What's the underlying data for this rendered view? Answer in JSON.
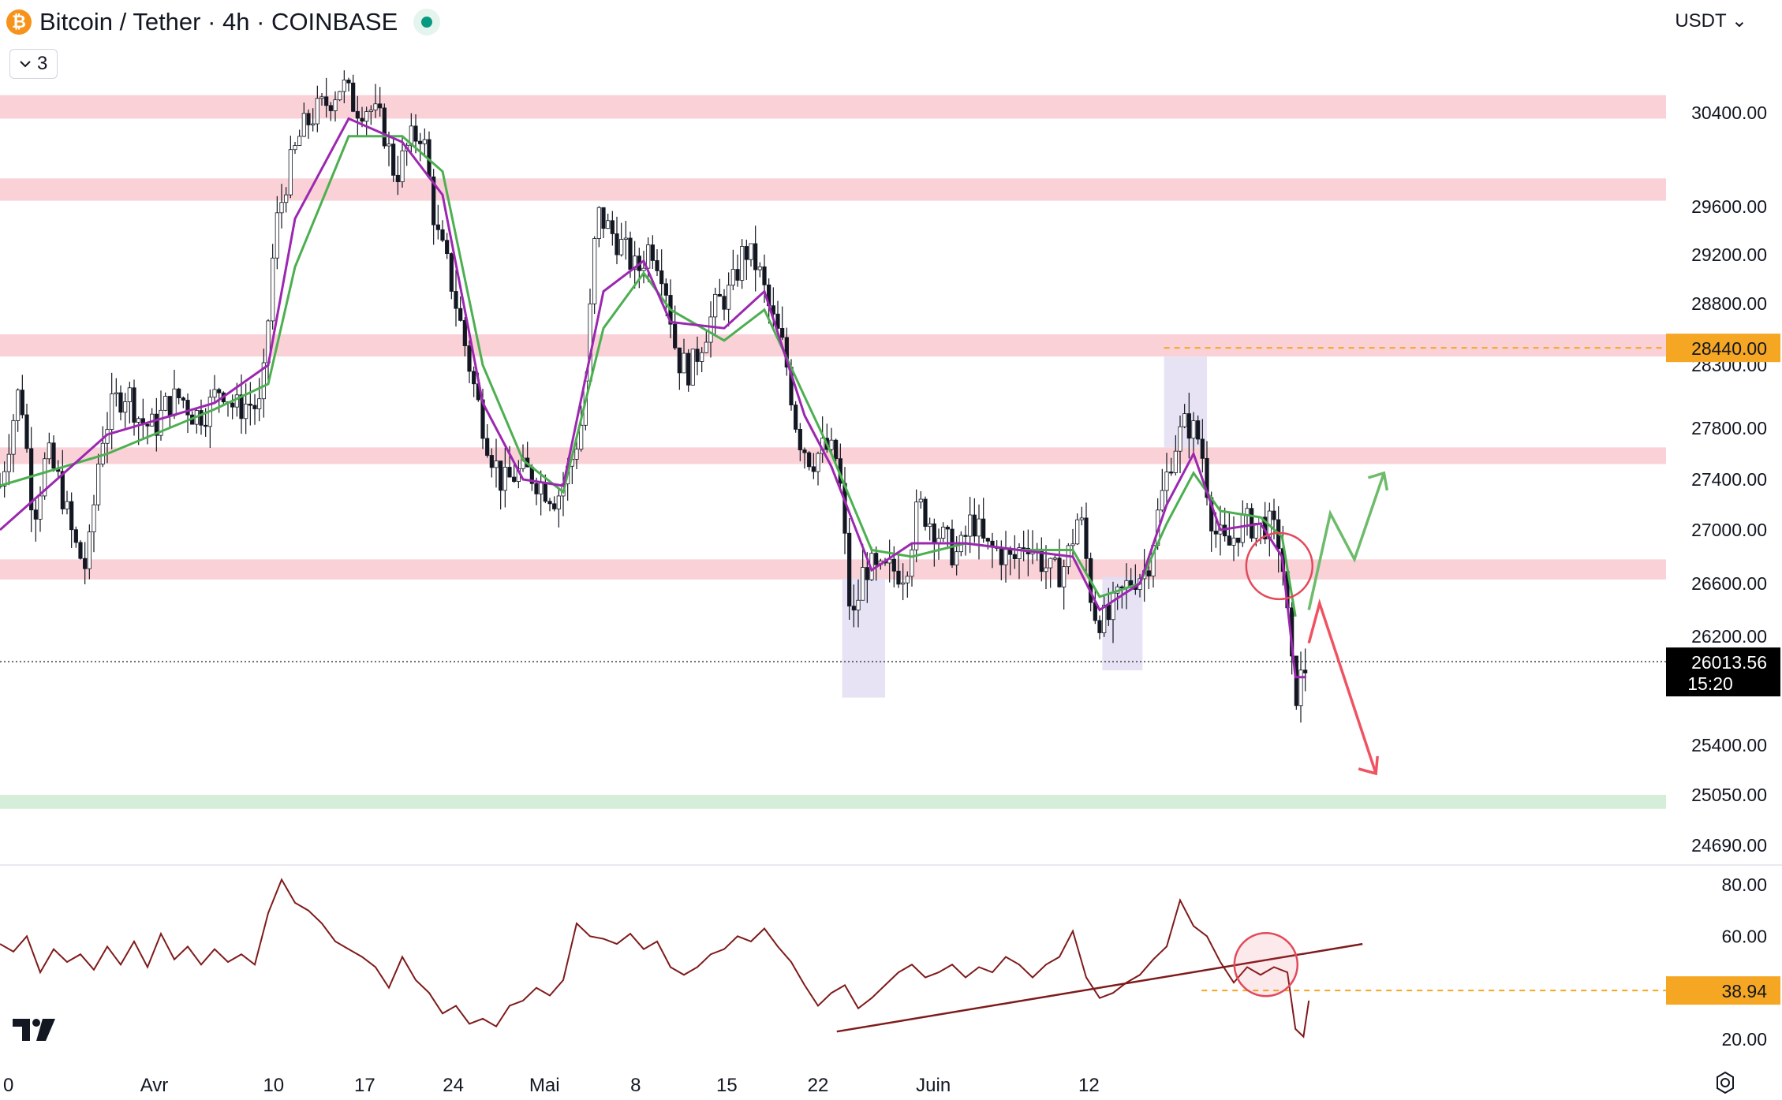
{
  "header": {
    "coin_symbol": "₿",
    "title": "Bitcoin / Tether · 4h · COINBASE",
    "indicators_count": "3",
    "currency": "USDT"
  },
  "colors": {
    "zone_resistance": "#f8c9d0",
    "zone_support": "#cdebd2",
    "highlight_box": "#e3def3",
    "ema_fast": "#9c27b0",
    "ema_slow": "#4caf50",
    "candle": "#131722",
    "rsi": "#7f1a1a",
    "price_label_bg": "#f5a623",
    "last_label_bg": "#000000",
    "projection_up": "#6dbb6b",
    "projection_down": "#ef5361",
    "circle": "#e24a5a"
  },
  "chart_data": [
    {
      "type": "candlestick",
      "title": "Bitcoin / Tether · 4h · COINBASE",
      "y_axis_ticks": [
        30400,
        29600,
        29200,
        28800,
        28300,
        27800,
        27400,
        27000,
        26600,
        26200,
        25400,
        25050,
        24690
      ],
      "y_axis_tick_labels": [
        "30400.00",
        "29600.00",
        "29200.00",
        "28800.00",
        "28300.00",
        "27800.00",
        "27400.00",
        "27000.00",
        "26600.00",
        "26200.00",
        "25400.00",
        "25050.00",
        "24690.00"
      ],
      "x_axis_labels": [
        "0",
        "Avr",
        "10",
        "17",
        "24",
        "Mai",
        "8",
        "15",
        "22",
        "Juin",
        "12"
      ],
      "price_series": {
        "name": "BTCUSDT close (approx.)",
        "points": [
          [
            0.0,
            27350
          ],
          [
            0.75,
            28150
          ],
          [
            1.25,
            27100
          ],
          [
            1.75,
            27600
          ],
          [
            2.25,
            27350
          ],
          [
            2.75,
            26900
          ],
          [
            3.25,
            26700
          ],
          [
            3.75,
            27700
          ],
          [
            4.25,
            28000
          ],
          [
            4.75,
            28100
          ],
          [
            5.25,
            27850
          ],
          [
            5.75,
            27800
          ],
          [
            6.25,
            28000
          ],
          [
            6.75,
            28050
          ],
          [
            7.25,
            27900
          ],
          [
            7.75,
            27950
          ],
          [
            8.25,
            28150
          ],
          [
            8.75,
            27950
          ],
          [
            9.25,
            28000
          ],
          [
            9.75,
            27950
          ],
          [
            10.25,
            29400
          ],
          [
            10.75,
            29900
          ],
          [
            11.25,
            30250
          ],
          [
            11.75,
            30400
          ],
          [
            12.25,
            30500
          ],
          [
            12.75,
            30650
          ],
          [
            13.25,
            30450
          ],
          [
            13.75,
            30450
          ],
          [
            14.25,
            30300
          ],
          [
            14.75,
            29850
          ],
          [
            15.25,
            30150
          ],
          [
            15.75,
            30250
          ],
          [
            16.25,
            29400
          ],
          [
            16.75,
            29050
          ],
          [
            17.25,
            28550
          ],
          [
            17.75,
            28050
          ],
          [
            18.25,
            27650
          ],
          [
            18.75,
            27350
          ],
          [
            19.25,
            27450
          ],
          [
            19.75,
            27450
          ],
          [
            20.25,
            27350
          ],
          [
            20.75,
            27250
          ],
          [
            21.25,
            27500
          ],
          [
            21.75,
            27900
          ],
          [
            22.25,
            29550
          ],
          [
            22.75,
            29400
          ],
          [
            23.25,
            29250
          ],
          [
            23.75,
            29050
          ],
          [
            24.25,
            29300
          ],
          [
            24.75,
            29050
          ],
          [
            25.25,
            28350
          ],
          [
            25.75,
            28250
          ],
          [
            26.25,
            28550
          ],
          [
            26.75,
            28800
          ],
          [
            27.25,
            28900
          ],
          [
            27.75,
            29250
          ],
          [
            28.25,
            29100
          ],
          [
            28.75,
            28700
          ],
          [
            29.25,
            28400
          ],
          [
            29.75,
            27750
          ],
          [
            30.25,
            27550
          ],
          [
            30.75,
            27650
          ],
          [
            31.25,
            27550
          ],
          [
            31.75,
            26250
          ],
          [
            32.25,
            26750
          ],
          [
            32.75,
            26650
          ],
          [
            33.25,
            26700
          ],
          [
            33.75,
            26700
          ],
          [
            34.25,
            27200
          ],
          [
            34.75,
            27050
          ],
          [
            35.25,
            26900
          ],
          [
            35.75,
            26800
          ],
          [
            36.25,
            27100
          ],
          [
            36.75,
            26850
          ],
          [
            37.25,
            26850
          ],
          [
            37.75,
            26750
          ],
          [
            38.25,
            26950
          ],
          [
            38.75,
            26800
          ],
          [
            39.25,
            26650
          ],
          [
            39.75,
            26750
          ],
          [
            40.25,
            27150
          ],
          [
            40.75,
            26400
          ],
          [
            41.25,
            26300
          ],
          [
            41.75,
            26500
          ],
          [
            42.25,
            26650
          ],
          [
            42.75,
            26700
          ],
          [
            43.25,
            27200
          ],
          [
            43.75,
            27650
          ],
          [
            44.25,
            27850
          ],
          [
            44.75,
            27700
          ],
          [
            45.25,
            27000
          ],
          [
            45.75,
            26850
          ],
          [
            46.25,
            27050
          ],
          [
            46.75,
            27050
          ],
          [
            47.25,
            27050
          ],
          [
            47.75,
            26900
          ],
          [
            48.25,
            25750
          ],
          [
            48.75,
            26013.56
          ]
        ]
      },
      "ema_fast_points": [
        [
          0,
          27000
        ],
        [
          4,
          27750
        ],
        [
          8,
          28000
        ],
        [
          10,
          28300
        ],
        [
          11,
          29500
        ],
        [
          13,
          30350
        ],
        [
          15,
          30150
        ],
        [
          16.5,
          29700
        ],
        [
          18,
          28000
        ],
        [
          19.5,
          27400
        ],
        [
          21,
          27350
        ],
        [
          22.5,
          28900
        ],
        [
          24,
          29150
        ],
        [
          25,
          28650
        ],
        [
          27,
          28600
        ],
        [
          28.5,
          28900
        ],
        [
          30,
          27900
        ],
        [
          31,
          27500
        ],
        [
          32.5,
          26700
        ],
        [
          34,
          26900
        ],
        [
          36,
          26900
        ],
        [
          38,
          26850
        ],
        [
          40,
          26800
        ],
        [
          41,
          26400
        ],
        [
          42.5,
          26600
        ],
        [
          43.5,
          27200
        ],
        [
          44.5,
          27600
        ],
        [
          45.5,
          27000
        ],
        [
          47,
          27050
        ],
        [
          47.8,
          26800
        ],
        [
          48.3,
          25900
        ],
        [
          48.7,
          25900
        ]
      ],
      "ema_slow_points": [
        [
          0,
          27350
        ],
        [
          4,
          27600
        ],
        [
          8,
          27950
        ],
        [
          10,
          28150
        ],
        [
          11,
          29100
        ],
        [
          13,
          30200
        ],
        [
          15,
          30200
        ],
        [
          16.5,
          29900
        ],
        [
          18,
          28300
        ],
        [
          19.5,
          27550
        ],
        [
          21,
          27300
        ],
        [
          22.5,
          28600
        ],
        [
          24,
          29050
        ],
        [
          25,
          28750
        ],
        [
          27,
          28500
        ],
        [
          28.5,
          28750
        ],
        [
          30,
          28050
        ],
        [
          31,
          27600
        ],
        [
          32.5,
          26850
        ],
        [
          34,
          26800
        ],
        [
          36,
          26900
        ],
        [
          38,
          26850
        ],
        [
          40,
          26850
        ],
        [
          41,
          26500
        ],
        [
          42.5,
          26600
        ],
        [
          43.5,
          27050
        ],
        [
          44.5,
          27450
        ],
        [
          45.5,
          27150
        ],
        [
          47,
          27100
        ],
        [
          47.8,
          26950
        ],
        [
          48.3,
          26350
        ]
      ],
      "resistance_zones": [
        [
          30350,
          30550
        ],
        [
          29650,
          29840
        ],
        [
          28370,
          28550
        ],
        [
          27520,
          27650
        ],
        [
          26630,
          26780
        ]
      ],
      "support_zones": [
        [
          24950,
          25050
        ]
      ],
      "highlight_boxes": [
        [
          31.4,
          33.0,
          25750,
          26640
        ],
        [
          41.1,
          42.6,
          25950,
          26650
        ],
        [
          43.4,
          45.0,
          27650,
          28370
        ]
      ],
      "price_labels": [
        {
          "value": 28440,
          "text": "28440.00"
        },
        {
          "value": 26013.56,
          "text": "26013.56",
          "sub": "15:20"
        }
      ],
      "projection_up": [
        [
          48.8,
          26400
        ],
        [
          49.6,
          27130
        ],
        [
          50.5,
          26780
        ],
        [
          51.6,
          27450
        ]
      ],
      "projection_down": [
        [
          48.8,
          26150
        ],
        [
          49.2,
          26450
        ],
        [
          51.3,
          25200
        ]
      ]
    },
    {
      "type": "line",
      "name": "RSI",
      "y_axis_ticks": [
        80,
        60,
        20
      ],
      "y_axis_tick_labels": [
        "80.00",
        "60.00",
        "20.00"
      ],
      "points": [
        [
          0.0,
          57
        ],
        [
          0.5,
          54
        ],
        [
          1.0,
          60
        ],
        [
          1.5,
          46
        ],
        [
          2.0,
          55
        ],
        [
          2.5,
          50
        ],
        [
          3.0,
          53
        ],
        [
          3.5,
          47
        ],
        [
          4.0,
          56
        ],
        [
          4.5,
          49
        ],
        [
          5.0,
          58
        ],
        [
          5.5,
          48
        ],
        [
          6.0,
          61
        ],
        [
          6.5,
          51
        ],
        [
          7.0,
          56
        ],
        [
          7.5,
          49
        ],
        [
          8.0,
          55
        ],
        [
          8.5,
          50
        ],
        [
          9.0,
          53
        ],
        [
          9.5,
          49
        ],
        [
          10.0,
          69
        ],
        [
          10.5,
          82
        ],
        [
          11.0,
          73
        ],
        [
          11.5,
          70
        ],
        [
          12.0,
          65
        ],
        [
          12.5,
          58
        ],
        [
          13.0,
          55
        ],
        [
          13.5,
          52
        ],
        [
          14.0,
          48
        ],
        [
          14.5,
          40
        ],
        [
          15.0,
          52
        ],
        [
          15.5,
          43
        ],
        [
          16.0,
          38
        ],
        [
          16.5,
          30
        ],
        [
          17.0,
          33
        ],
        [
          17.5,
          26
        ],
        [
          18.0,
          28
        ],
        [
          18.5,
          25
        ],
        [
          19.0,
          33
        ],
        [
          19.5,
          35
        ],
        [
          20.0,
          40
        ],
        [
          20.5,
          37
        ],
        [
          21.0,
          43
        ],
        [
          21.5,
          65
        ],
        [
          22.0,
          60
        ],
        [
          22.5,
          59
        ],
        [
          23.0,
          57
        ],
        [
          23.5,
          61
        ],
        [
          24.0,
          55
        ],
        [
          24.5,
          58
        ],
        [
          25.0,
          48
        ],
        [
          25.5,
          45
        ],
        [
          26.0,
          48
        ],
        [
          26.5,
          53
        ],
        [
          27.0,
          55
        ],
        [
          27.5,
          60
        ],
        [
          28.0,
          58
        ],
        [
          28.5,
          63
        ],
        [
          29.0,
          56
        ],
        [
          29.5,
          50
        ],
        [
          30.0,
          41
        ],
        [
          30.5,
          33
        ],
        [
          31.0,
          38
        ],
        [
          31.5,
          41
        ],
        [
          32.0,
          32
        ],
        [
          32.5,
          36
        ],
        [
          33.0,
          41
        ],
        [
          33.5,
          46
        ],
        [
          34.0,
          49
        ],
        [
          34.5,
          44
        ],
        [
          35.0,
          46
        ],
        [
          35.5,
          49
        ],
        [
          36.0,
          44
        ],
        [
          36.5,
          48
        ],
        [
          37.0,
          46
        ],
        [
          37.5,
          52
        ],
        [
          38.0,
          49
        ],
        [
          38.5,
          44
        ],
        [
          39.0,
          49
        ],
        [
          39.5,
          52
        ],
        [
          40.0,
          62
        ],
        [
          40.5,
          44
        ],
        [
          41.0,
          36
        ],
        [
          41.5,
          38
        ],
        [
          42.0,
          42
        ],
        [
          42.5,
          45
        ],
        [
          43.0,
          51
        ],
        [
          43.5,
          56
        ],
        [
          44.0,
          74
        ],
        [
          44.5,
          64
        ],
        [
          45.0,
          60
        ],
        [
          45.5,
          50
        ],
        [
          46.0,
          42
        ],
        [
          46.5,
          48
        ],
        [
          47.0,
          45
        ],
        [
          47.5,
          48
        ],
        [
          48.0,
          46
        ],
        [
          48.3,
          24
        ],
        [
          48.6,
          21
        ],
        [
          48.8,
          35
        ]
      ],
      "trendline": [
        [
          31.2,
          23
        ],
        [
          50.8,
          57
        ]
      ],
      "level_label": {
        "value": 38.94,
        "text": "38.94"
      },
      "circle": [
        47.2,
        49
      ]
    }
  ]
}
